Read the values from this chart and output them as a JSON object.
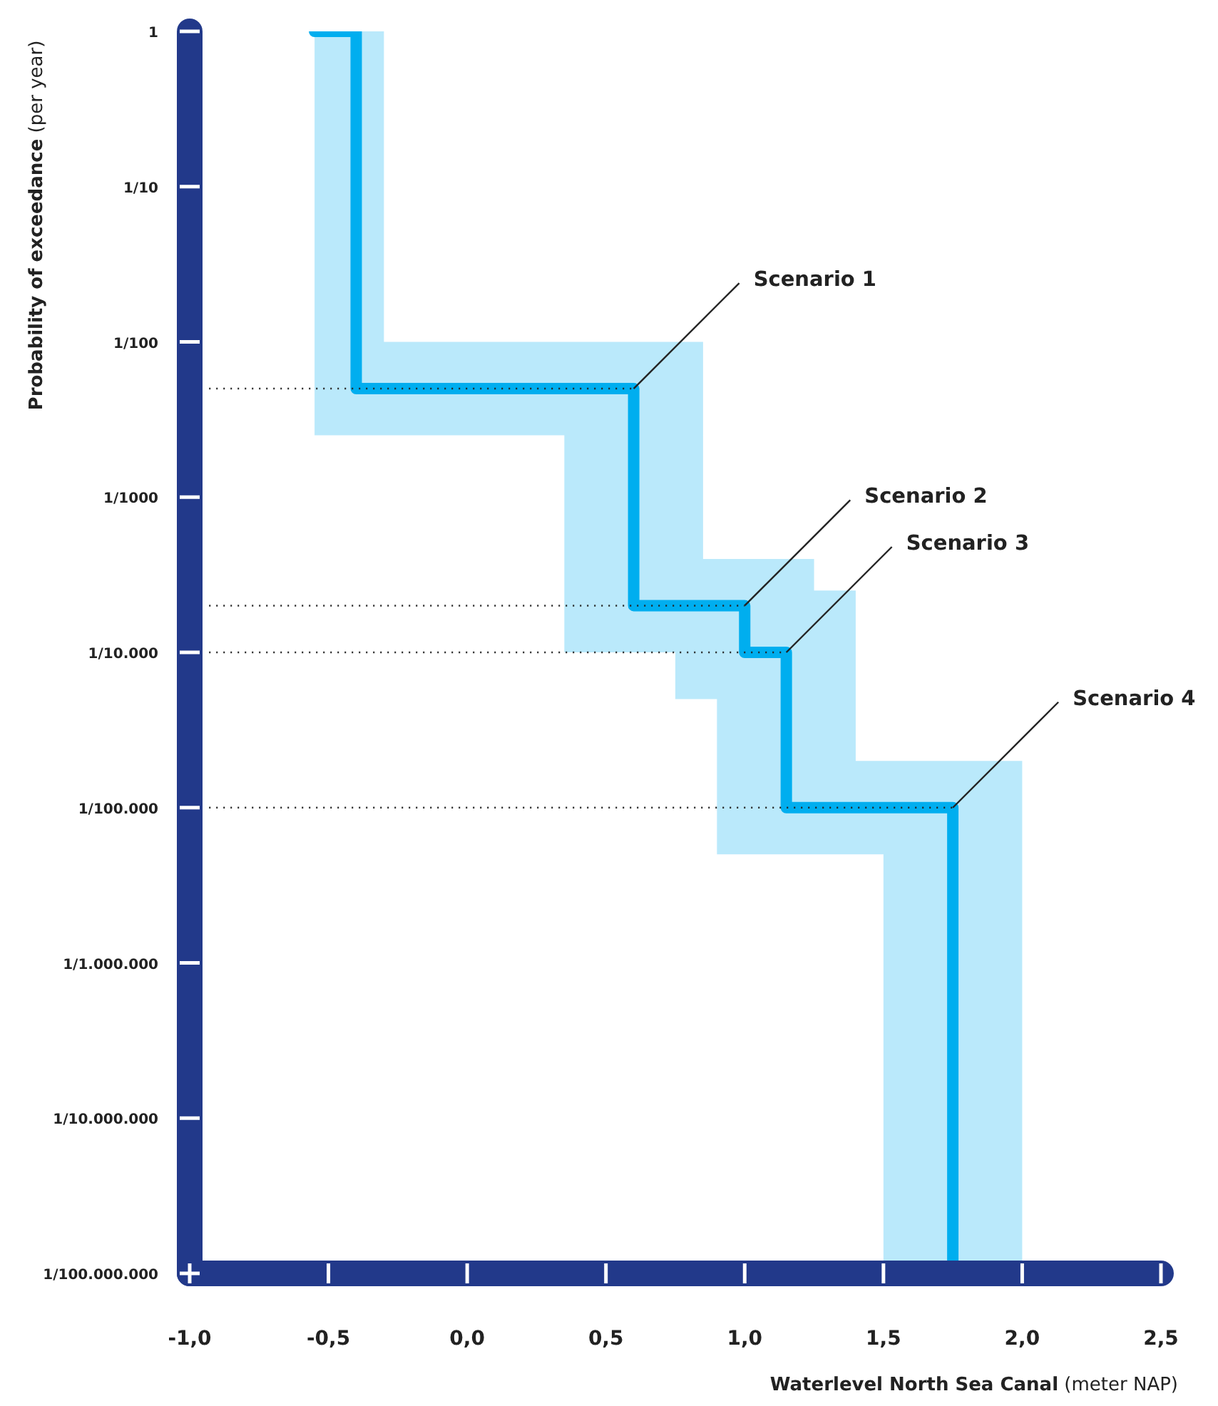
{
  "chart_data": {
    "type": "step",
    "ylabel": "Probability of exceedance (per year)",
    "xlabel": "Waterlevel North Sea Canal (meter NAP)",
    "log": "y",
    "grid": false,
    "legend": false,
    "xlim": [
      -1.0,
      2.5
    ],
    "xticks": [
      {
        "value": -1.0,
        "label": "-1,0"
      },
      {
        "value": -0.5,
        "label": "-0,5"
      },
      {
        "value": 0,
        "label": "0,0"
      },
      {
        "value": 0.5,
        "label": "0,5"
      },
      {
        "value": 1.0,
        "label": "1,0"
      },
      {
        "value": 1.5,
        "label": "1,5"
      },
      {
        "value": 2.0,
        "label": "2,0"
      },
      {
        "value": 2.5,
        "label": "2,5"
      }
    ],
    "ylim": [
      1e-08,
      1
    ],
    "yticks": [
      {
        "value": 1,
        "label": "1"
      },
      {
        "value": 0.1,
        "label": "1/10"
      },
      {
        "value": 0.01,
        "label": "1/100"
      },
      {
        "value": 0.001,
        "label": "1/1000"
      },
      {
        "value": 0.0001,
        "label": "1/10.000"
      },
      {
        "value": 1e-05,
        "label": "1/100.000"
      },
      {
        "value": 1e-06,
        "label": "1/1.000.000"
      },
      {
        "value": 1e-07,
        "label": "1/10.000.000"
      },
      {
        "value": 1e-08,
        "label": "1/100.000.000"
      }
    ],
    "series": [
      {
        "color": "#00aeef",
        "x": [
          -0.55,
          -0.4,
          -0.3,
          0.35,
          0.6,
          0.75,
          0.85,
          0.9,
          1.0,
          1.15,
          1.25,
          1.4,
          1.5,
          1.75,
          2.0
        ],
        "values": [
          1,
          0.005,
          0.005,
          0.005,
          0.0002,
          0.0002,
          0.0002,
          0.0002,
          0.0001,
          1e-05,
          1e-05,
          1e-05,
          1e-05,
          1e-08,
          null
        ],
        "lower": [
          0.0025,
          0.0025,
          0.0025,
          0.0001,
          0.0001,
          5e-05,
          5e-05,
          5e-06,
          5e-06,
          5e-06,
          5e-06,
          5e-06,
          1e-08,
          1e-08,
          1e-08
        ],
        "upper": [
          1,
          1,
          0.01,
          0.01,
          0.01,
          0.01,
          0.0004,
          0.0004,
          0.0004,
          0.0004,
          0.00025,
          2e-05,
          2e-05,
          2e-05,
          2e-05
        ]
      }
    ],
    "ref_lines": [
      {
        "axis": "y",
        "value": 0.005,
        "line_style": "dotted",
        "color": "#222222"
      },
      {
        "axis": "y",
        "value": 0.0002,
        "line_style": "dotted",
        "color": "#222222"
      },
      {
        "axis": "y",
        "value": 0.0001,
        "line_style": "dotted",
        "color": "#222222"
      },
      {
        "axis": "y",
        "value": 1e-05,
        "line_style": "dotted",
        "color": "#222222"
      }
    ],
    "annotations": [
      {
        "text": "Scenario 1",
        "x": 0.6,
        "y": 0.005
      },
      {
        "text": "Scenario 2",
        "x": 1.0,
        "y": 0.0002
      },
      {
        "text": "Scenario 3",
        "x": 1.15,
        "y": 0.0001
      },
      {
        "text": "Scenario 4",
        "x": 1.75,
        "y": 1e-05
      }
    ]
  }
}
